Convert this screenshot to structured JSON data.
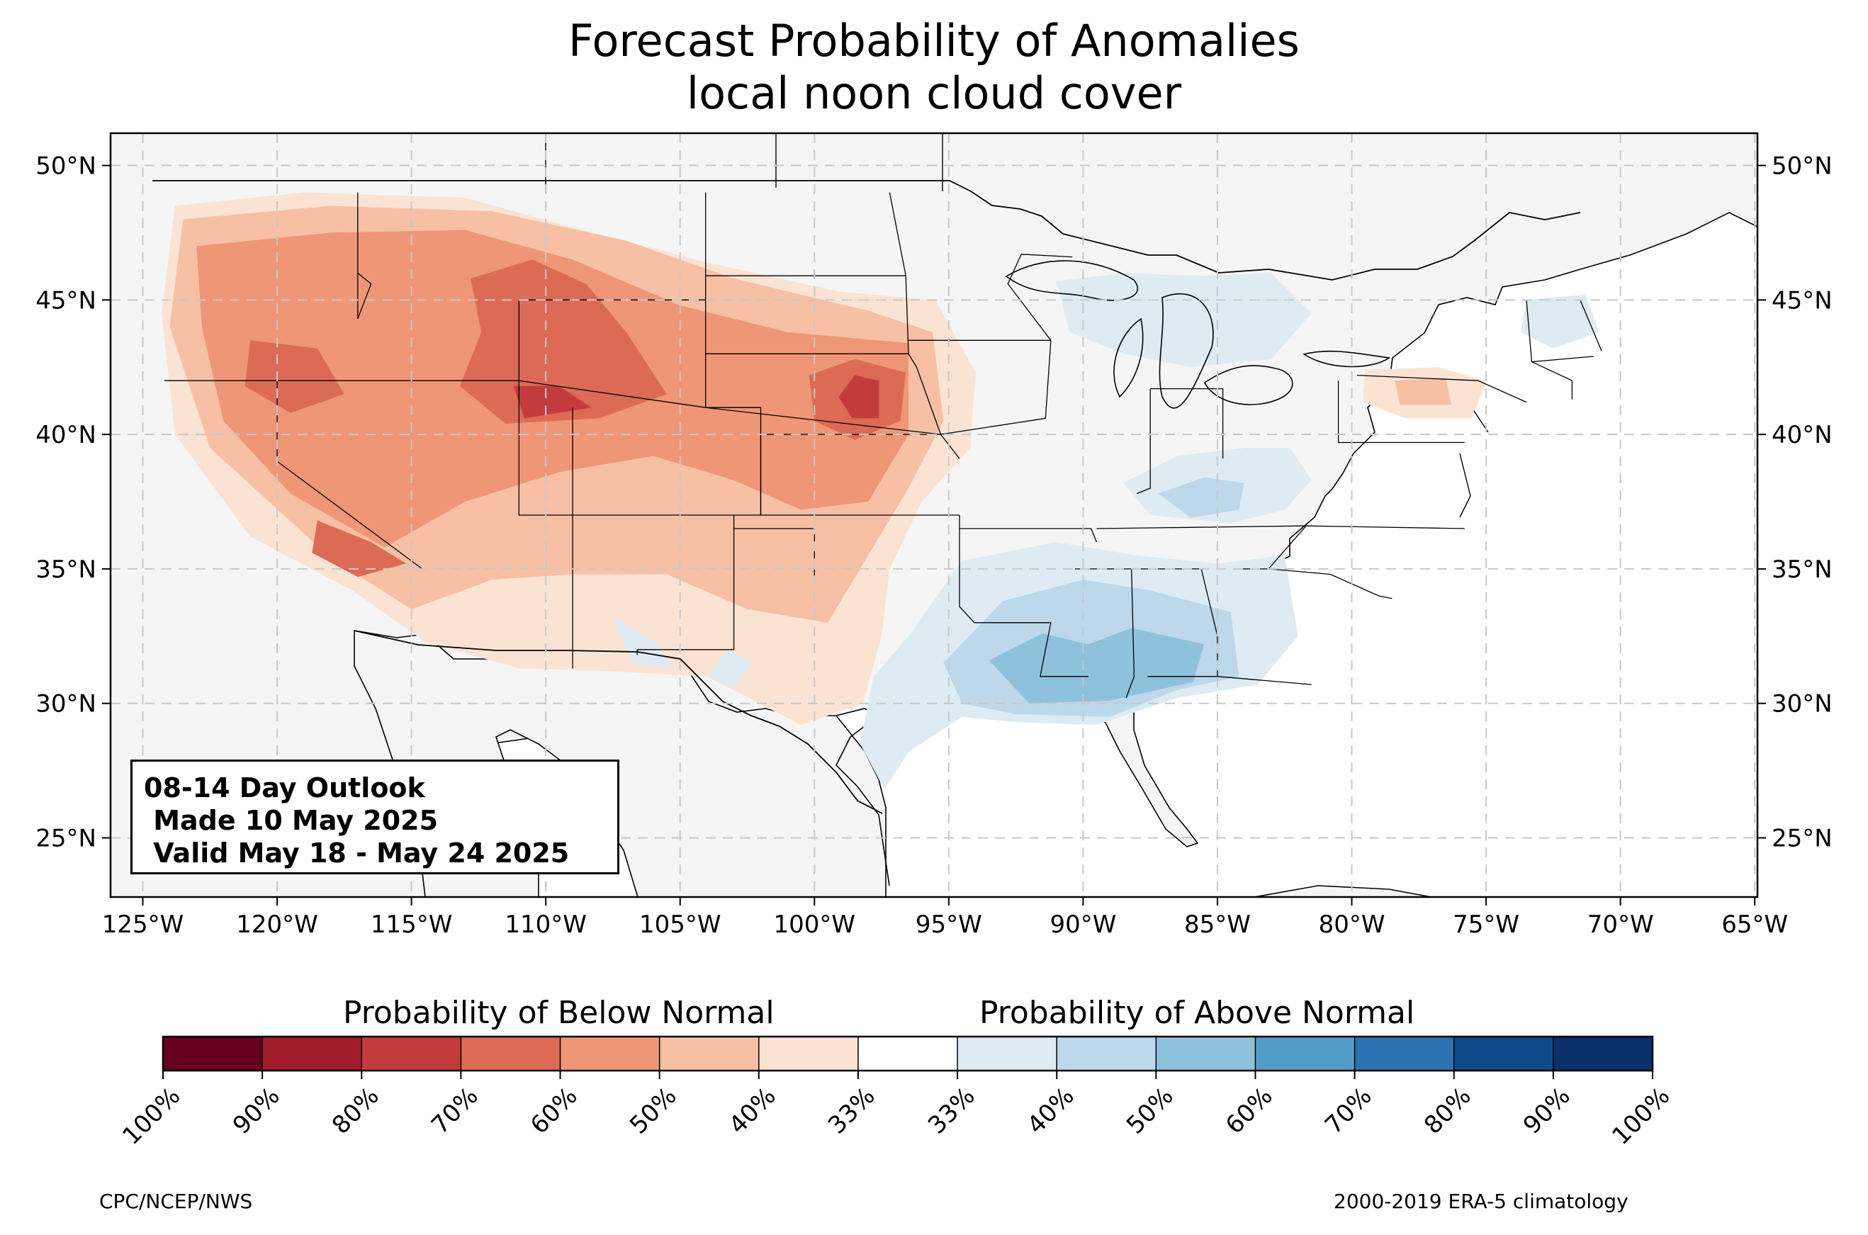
{
  "title": {
    "line1": "Forecast Probability of Anomalies",
    "line2": "local noon cloud cover"
  },
  "info_box": {
    "line1": "08-14 Day Outlook",
    "line2": " Made 10 May 2025",
    "line3": " Valid May 18 - May 24 2025"
  },
  "legend": {
    "below_label": "Probability of Below Normal",
    "above_label": "Probability of Above Normal",
    "tick_labels": [
      "100%",
      "90%",
      "80%",
      "70%",
      "60%",
      "50%",
      "40%",
      "33%",
      "33%",
      "40%",
      "50%",
      "60%",
      "70%",
      "80%",
      "90%",
      "100%"
    ],
    "colors": [
      "#67001f",
      "#9f1a2a",
      "#c33c3d",
      "#dc6b55",
      "#ef9677",
      "#f7c0a4",
      "#fbe3d4",
      "#ffffff",
      "#deebf3",
      "#bcd8ea",
      "#8ec1dc",
      "#529dc8",
      "#2b73b2",
      "#114a8a",
      "#08306b"
    ]
  },
  "map": {
    "lon_labels": [
      "125°W",
      "120°W",
      "115°W",
      "110°W",
      "105°W",
      "100°W",
      "95°W",
      "90°W",
      "85°W",
      "80°W",
      "75°W",
      "70°W",
      "65°W"
    ],
    "lat_labels": [
      "50°N",
      "45°N",
      "40°N",
      "35°N",
      "30°N",
      "25°N"
    ],
    "lon_values": [
      -125,
      -120,
      -115,
      -110,
      -105,
      -100,
      -95,
      -90,
      -85,
      -80,
      -75,
      -70,
      -65
    ],
    "lat_values": [
      50,
      45,
      40,
      35,
      30,
      25
    ],
    "lon_range": [
      -126.2,
      -64.9
    ],
    "lat_range": [
      22.8,
      51.2
    ],
    "background_color": "#f5f5f5",
    "anomaly_regions": [
      {
        "category": "below-40",
        "points": [
          [
            -123.8,
            48.5
          ],
          [
            -119,
            49
          ],
          [
            -113,
            48.8
          ],
          [
            -109,
            47.7
          ],
          [
            -104,
            46.4
          ],
          [
            -99,
            45.3
          ],
          [
            -95.5,
            45
          ],
          [
            -94,
            42.3
          ],
          [
            -94.2,
            39.5
          ],
          [
            -96,
            37.5
          ],
          [
            -97.2,
            35
          ],
          [
            -97.5,
            32.5
          ],
          [
            -98.2,
            30
          ],
          [
            -100.5,
            29.2
          ],
          [
            -104,
            31
          ],
          [
            -107.6,
            31.2
          ],
          [
            -111,
            31.3
          ],
          [
            -114.5,
            32.3
          ],
          [
            -117.2,
            34.2
          ],
          [
            -121,
            36.2
          ],
          [
            -123.8,
            40
          ],
          [
            -124.3,
            44.5
          ]
        ]
      },
      {
        "category": "below-50",
        "points": [
          [
            -123.5,
            48
          ],
          [
            -118,
            48.5
          ],
          [
            -112,
            48.3
          ],
          [
            -107,
            47.2
          ],
          [
            -103,
            45.8
          ],
          [
            -98,
            44.6
          ],
          [
            -95.6,
            43.8
          ],
          [
            -95.2,
            40.5
          ],
          [
            -96.5,
            38
          ],
          [
            -98,
            35.5
          ],
          [
            -99.5,
            33
          ],
          [
            -102.5,
            33.5
          ],
          [
            -105.5,
            34.8
          ],
          [
            -109,
            34.8
          ],
          [
            -112,
            34.6
          ],
          [
            -115,
            33.5
          ],
          [
            -118,
            35.4
          ],
          [
            -122.5,
            39.5
          ],
          [
            -124,
            44
          ]
        ]
      },
      {
        "category": "below-60",
        "points": [
          [
            -123,
            47
          ],
          [
            -118,
            47.5
          ],
          [
            -113,
            47.6
          ],
          [
            -109,
            46.5
          ],
          [
            -105,
            44.8
          ],
          [
            -101,
            43.8
          ],
          [
            -96.5,
            43.4
          ],
          [
            -96.5,
            40
          ],
          [
            -98,
            37.5
          ],
          [
            -100.5,
            37.2
          ],
          [
            -103,
            38.3
          ],
          [
            -106,
            39.2
          ],
          [
            -109.5,
            38.6
          ],
          [
            -113,
            37.5
          ],
          [
            -116,
            35.8
          ],
          [
            -119.5,
            37.8
          ],
          [
            -122,
            40.5
          ],
          [
            -122.8,
            44
          ]
        ]
      },
      {
        "category": "below-70",
        "points": [
          [
            -112.8,
            45.8
          ],
          [
            -110.5,
            46.5
          ],
          [
            -108.5,
            45.6
          ],
          [
            -107,
            43.8
          ],
          [
            -105.5,
            41.5
          ],
          [
            -108,
            40.6
          ],
          [
            -111.5,
            40.4
          ],
          [
            -113.2,
            41.8
          ],
          [
            -112.4,
            43.8
          ]
        ]
      },
      {
        "category": "below-70",
        "points": [
          [
            -100.2,
            42.2
          ],
          [
            -98.5,
            42.8
          ],
          [
            -96.6,
            42.3
          ],
          [
            -96.8,
            40.5
          ],
          [
            -98.5,
            39.8
          ],
          [
            -100,
            40.5
          ]
        ]
      },
      {
        "category": "below-70",
        "points": [
          [
            -121,
            43.5
          ],
          [
            -118.5,
            43.2
          ],
          [
            -117.5,
            41.5
          ],
          [
            -119.5,
            40.8
          ],
          [
            -121.2,
            41.8
          ]
        ]
      },
      {
        "category": "below-70",
        "points": [
          [
            -118.5,
            36.8
          ],
          [
            -116.5,
            36
          ],
          [
            -115.2,
            35.2
          ],
          [
            -117,
            34.7
          ],
          [
            -118.7,
            35.6
          ]
        ]
      },
      {
        "category": "below-80",
        "points": [
          [
            -111.2,
            41.8
          ],
          [
            -109.5,
            41.8
          ],
          [
            -108.3,
            41
          ],
          [
            -110.8,
            40.6
          ]
        ]
      },
      {
        "category": "below-80",
        "points": [
          [
            -98.5,
            42.2
          ],
          [
            -97.6,
            42
          ],
          [
            -97.6,
            40.6
          ],
          [
            -98.6,
            40.6
          ],
          [
            -99.1,
            41.4
          ]
        ]
      },
      {
        "category": "above-40",
        "points": [
          [
            -96.5,
            32.5
          ],
          [
            -94.5,
            35.3
          ],
          [
            -91,
            36
          ],
          [
            -88,
            35.5
          ],
          [
            -85,
            35.2
          ],
          [
            -82.5,
            35.5
          ],
          [
            -82,
            32.5
          ],
          [
            -83.5,
            30.7
          ],
          [
            -86.5,
            30.2
          ],
          [
            -89.5,
            29.2
          ],
          [
            -92.5,
            29.3
          ],
          [
            -94.5,
            29.5
          ],
          [
            -96.5,
            28.2
          ],
          [
            -97.4,
            26.8
          ],
          [
            -98.3,
            28.5
          ],
          [
            -97.8,
            31
          ]
        ]
      },
      {
        "category": "above-50",
        "points": [
          [
            -95.2,
            31.5
          ],
          [
            -93,
            33.8
          ],
          [
            -90,
            34.6
          ],
          [
            -87.5,
            34.2
          ],
          [
            -84.5,
            33.4
          ],
          [
            -84.2,
            31
          ],
          [
            -86.5,
            30.5
          ],
          [
            -89,
            29.5
          ],
          [
            -92.5,
            29.6
          ],
          [
            -94.5,
            30
          ]
        ]
      },
      {
        "category": "above-60",
        "points": [
          [
            -93.5,
            31.6
          ],
          [
            -91.5,
            32.6
          ],
          [
            -89.8,
            32.2
          ],
          [
            -88.2,
            32.8
          ],
          [
            -85.5,
            32.2
          ],
          [
            -85.9,
            30.8
          ],
          [
            -89,
            30.1
          ],
          [
            -92,
            30
          ]
        ]
      },
      {
        "category": "above-40",
        "points": [
          [
            -88.5,
            38.2
          ],
          [
            -86.5,
            39.2
          ],
          [
            -84,
            39.5
          ],
          [
            -82.3,
            39.5
          ],
          [
            -81.5,
            38.3
          ],
          [
            -82.5,
            37.2
          ],
          [
            -84.5,
            36.7
          ],
          [
            -87.5,
            37
          ]
        ]
      },
      {
        "category": "above-50",
        "points": [
          [
            -87.2,
            37.8
          ],
          [
            -85.5,
            38.4
          ],
          [
            -84,
            38.2
          ],
          [
            -84.2,
            37.2
          ],
          [
            -86,
            36.9
          ]
        ]
      },
      {
        "category": "above-40",
        "points": [
          [
            -91,
            45.7
          ],
          [
            -88.5,
            46
          ],
          [
            -85.5,
            45.9
          ],
          [
            -83,
            46
          ],
          [
            -81.5,
            44.5
          ],
          [
            -83,
            42.8
          ],
          [
            -86,
            42.5
          ],
          [
            -88.5,
            43
          ],
          [
            -90.5,
            43.8
          ]
        ]
      },
      {
        "category": "above-40",
        "points": [
          [
            -73.5,
            45
          ],
          [
            -71.3,
            45.2
          ],
          [
            -70.8,
            43.8
          ],
          [
            -72.5,
            43.2
          ],
          [
            -73.7,
            43.8
          ]
        ]
      },
      {
        "category": "above-40",
        "points": [
          [
            -107.5,
            33.2
          ],
          [
            -105.8,
            32.2
          ],
          [
            -105.3,
            31.3
          ],
          [
            -106.8,
            31.5
          ]
        ]
      },
      {
        "category": "above-40",
        "points": [
          [
            -103.2,
            32
          ],
          [
            -102.3,
            31.5
          ],
          [
            -103,
            30.6
          ],
          [
            -104,
            31
          ]
        ]
      },
      {
        "category": "below-40",
        "points": [
          [
            -79.5,
            42.4
          ],
          [
            -76.8,
            42.5
          ],
          [
            -75,
            42
          ],
          [
            -75.5,
            40.6
          ],
          [
            -78,
            40.6
          ],
          [
            -79.6,
            41.2
          ]
        ]
      },
      {
        "category": "below-50",
        "points": [
          [
            -78.4,
            42
          ],
          [
            -76.5,
            42.1
          ],
          [
            -76.3,
            41.1
          ],
          [
            -78.2,
            41.1
          ]
        ]
      }
    ],
    "state_lines": [
      [
        [
          -124.2,
          42
        ],
        [
          -117,
          42
        ],
        [
          -111,
          42
        ],
        [
          -104.05,
          41
        ],
        [
          -95.3,
          40
        ],
        [
          -102,
          40
        ]
      ],
      [
        [
          -120,
          42
        ],
        [
          -120,
          39
        ],
        [
          -114.6,
          35
        ]
      ],
      [
        [
          -117,
          49
        ],
        [
          -117,
          44.3
        ],
        [
          -116.5,
          45.6
        ],
        [
          -117,
          46
        ]
      ],
      [
        [
          -111,
          45
        ],
        [
          -111,
          37
        ],
        [
          -109,
          37
        ],
        [
          -103,
          37
        ],
        [
          -94.6,
          37
        ]
      ],
      [
        [
          -109,
          41
        ],
        [
          -109,
          31.3
        ]
      ],
      [
        [
          -104.05,
          49
        ],
        [
          -104.05,
          41
        ],
        [
          -102,
          41
        ],
        [
          -102,
          37
        ]
      ],
      [
        [
          -111,
          45
        ],
        [
          -104.05,
          45
        ]
      ],
      [
        [
          -104.05,
          45.9
        ],
        [
          -96.6,
          45.9
        ]
      ],
      [
        [
          -104.05,
          43
        ],
        [
          -96.5,
          43
        ]
      ],
      [
        [
          -102,
          40
        ],
        [
          -102,
          37
        ]
      ],
      [
        [
          -103,
          37
        ],
        [
          -103,
          32
        ],
        [
          -106.6,
          32
        ],
        [
          -106.6,
          31.8
        ]
      ],
      [
        [
          -100,
          36.5
        ],
        [
          -100,
          34.5
        ]
      ],
      [
        [
          -103,
          36.5
        ],
        [
          -100,
          36.5
        ]
      ],
      [
        [
          -94.6,
          37
        ],
        [
          -94.6,
          33.6
        ],
        [
          -94.05,
          33
        ]
      ],
      [
        [
          -96.6,
          45.9
        ],
        [
          -96.5,
          43
        ],
        [
          -96.2,
          42.5
        ],
        [
          -95.3,
          40
        ]
      ],
      [
        [
          -97.2,
          49
        ],
        [
          -96.6,
          45.9
        ]
      ],
      [
        [
          -94.6,
          39.1
        ],
        [
          -95.3,
          40
        ],
        [
          -91.4,
          40.6
        ],
        [
          -91.2,
          43.5
        ]
      ],
      [
        [
          -96.5,
          43.5
        ],
        [
          -91.2,
          43.5
        ]
      ],
      [
        [
          -94.6,
          36.5
        ],
        [
          -89.7,
          36.5
        ],
        [
          -89.5,
          36
        ]
      ],
      [
        [
          -94.05,
          33
        ],
        [
          -91.2,
          33
        ],
        [
          -91.6,
          31
        ],
        [
          -89.8,
          31
        ]
      ],
      [
        [
          -90.3,
          35
        ],
        [
          -88.2,
          35
        ],
        [
          -88.1,
          31
        ],
        [
          -88.4,
          30.2
        ]
      ],
      [
        [
          -88.2,
          35
        ],
        [
          -85.6,
          35
        ],
        [
          -85,
          32.5
        ],
        [
          -85,
          31
        ],
        [
          -87.6,
          31
        ]
      ],
      [
        [
          -85,
          31
        ],
        [
          -81.5,
          30.7
        ]
      ],
      [
        [
          -84.3,
          35
        ],
        [
          -83.1,
          35
        ],
        [
          -80.8,
          34.8
        ],
        [
          -79,
          34
        ],
        [
          -78.5,
          33.9
        ]
      ],
      [
        [
          -83.1,
          35
        ],
        [
          -81.7,
          36.6
        ],
        [
          -75.8,
          36.5
        ]
      ],
      [
        [
          -89.5,
          36.5
        ],
        [
          -81.7,
          36.6
        ]
      ],
      [
        [
          -87.5,
          41.7
        ],
        [
          -87.5,
          38
        ],
        [
          -88,
          37.8
        ]
      ],
      [
        [
          -84.8,
          41.7
        ],
        [
          -84.8,
          39.1
        ]
      ],
      [
        [
          -80.5,
          42
        ],
        [
          -80.5,
          39.7
        ],
        [
          -75.8,
          39.7
        ]
      ],
      [
        [
          -79.8,
          42.2
        ],
        [
          -75.3,
          42
        ],
        [
          -73.5,
          41.2
        ]
      ],
      [
        [
          -73.5,
          45
        ],
        [
          -73.3,
          42.7
        ],
        [
          -71.8,
          42
        ],
        [
          -71.8,
          41.3
        ]
      ],
      [
        [
          -71.5,
          45
        ],
        [
          -70.7,
          43.1
        ]
      ],
      [
        [
          -73.3,
          42.7
        ],
        [
          -71,
          42.9
        ]
      ],
      [
        [
          -90.4,
          46.6
        ],
        [
          -92.3,
          46.7
        ],
        [
          -92.8,
          45.6
        ],
        [
          -91.2,
          43.5
        ]
      ],
      [
        [
          -84.8,
          41.7
        ],
        [
          -87.5,
          41.7
        ]
      ]
    ]
  }
}
